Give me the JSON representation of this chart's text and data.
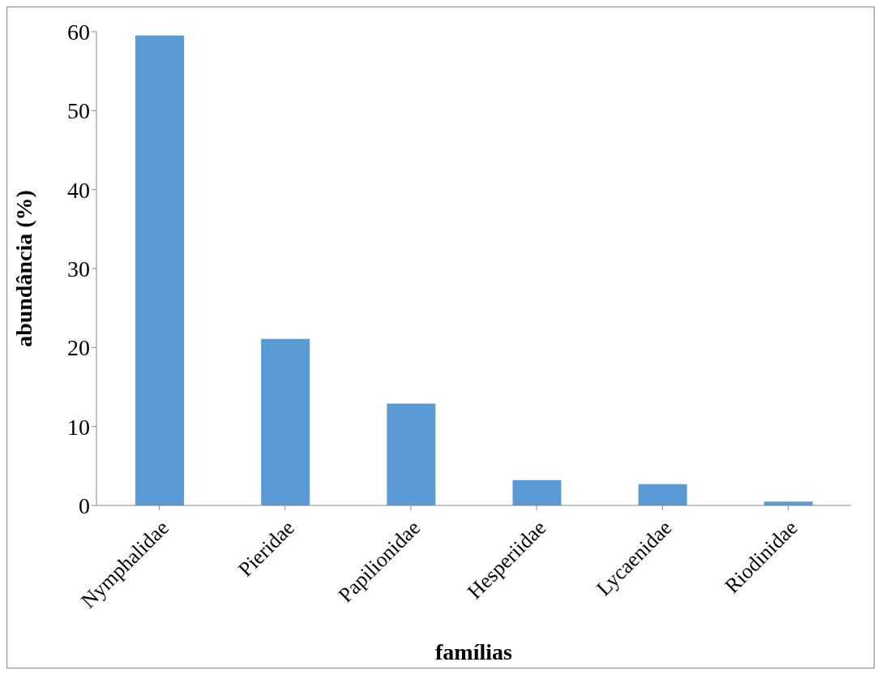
{
  "chart_data": {
    "type": "bar",
    "xlabel": "famílias",
    "ylabel": "abundância (%)",
    "categories": [
      "Nymphalidae",
      "Pieridae",
      "Papilionidae",
      "Hesperiidae",
      "Lycaenidae",
      "Riodinidae"
    ],
    "values": [
      59.5,
      21.1,
      12.9,
      3.2,
      2.7,
      0.5
    ],
    "color": "#5b9bd5",
    "ylim": [
      0,
      60
    ],
    "yticks": [
      0,
      10,
      20,
      30,
      40,
      50,
      60
    ],
    "grid": false,
    "legend": false
  }
}
